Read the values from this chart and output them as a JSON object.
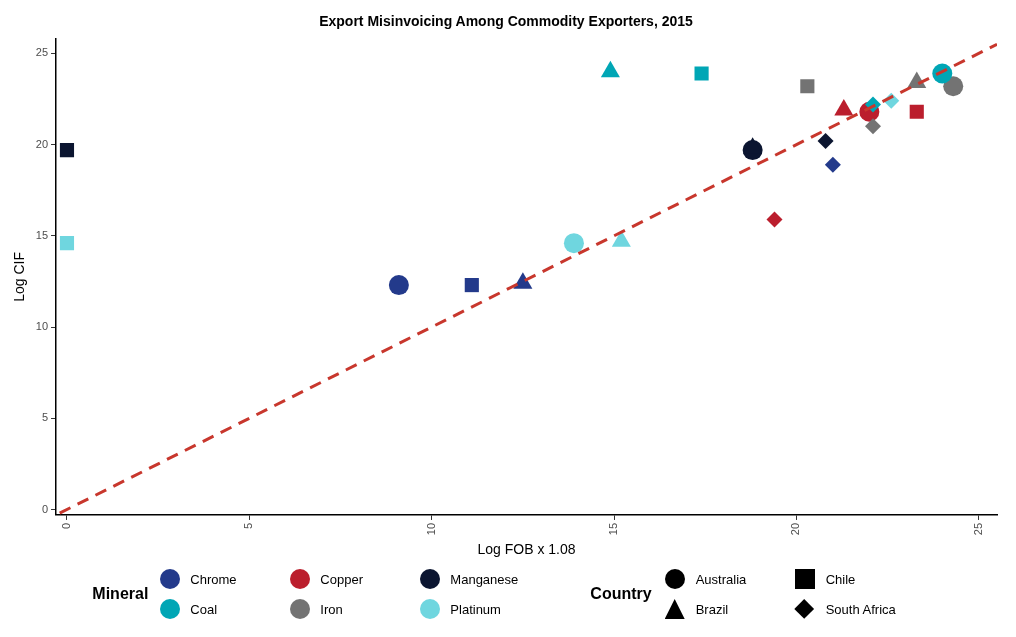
{
  "chart_data": {
    "type": "scatter",
    "title": "Export Misinvoicing Among Commodity Exporters, 2015",
    "xlabel": "Log FOB x 1.08",
    "ylabel": "Log CIF",
    "xlim": [
      -0.3,
      25.5
    ],
    "ylim": [
      -0.3,
      25.8
    ],
    "xticks": [
      0,
      5,
      10,
      15,
      20,
      25
    ],
    "yticks": [
      0,
      5,
      10,
      15,
      20,
      25
    ],
    "grid": false,
    "legend": "bottom",
    "legend_title": "Mineral",
    "annotations": [
      "Country",
      "Australia",
      "Chile",
      "Brazil",
      "South Africa"
    ],
    "series": [
      {
        "name": "Chrome",
        "color": "#233a8b",
        "marker": "circle",
        "x": [
          9.1
        ],
        "values": [
          12.3
        ]
      },
      {
        "color": "#233a8b",
        "marker": "square",
        "x": [
          11.1
        ],
        "values": [
          12.3
        ]
      },
      {
        "color": "#233a8b",
        "marker": "triangle",
        "x": [
          12.5
        ],
        "values": [
          12.4
        ]
      },
      {
        "color": "#233a8b",
        "marker": "diamond",
        "x": [
          21.0
        ],
        "values": [
          18.9
        ]
      },
      {
        "name": "Copper",
        "color": "#bb1e2d",
        "marker": "circle",
        "x": [
          22.0
        ],
        "values": [
          21.8
        ]
      },
      {
        "color": "#bb1e2d",
        "marker": "square",
        "x": [
          23.3
        ],
        "values": [
          21.8
        ]
      },
      {
        "color": "#bb1e2d",
        "marker": "triangle",
        "x": [
          21.3
        ],
        "values": [
          21.9
        ]
      },
      {
        "color": "#bb1e2d",
        "marker": "diamond",
        "x": [
          19.4
        ],
        "values": [
          15.9
        ]
      },
      {
        "name": "Manganese",
        "color": "#0b1530",
        "marker": "circle",
        "x": [
          18.8
        ],
        "values": [
          19.7
        ]
      },
      {
        "color": "#0b1530",
        "marker": "square",
        "x": [
          0
        ],
        "values": [
          19.7
        ]
      },
      {
        "color": "#0b1530",
        "marker": "triangle",
        "x": [
          18.8
        ],
        "values": [
          19.8
        ]
      },
      {
        "color": "#0b1530",
        "marker": "diamond",
        "x": [
          20.8
        ],
        "values": [
          20.2
        ]
      },
      {
        "name": "Coal",
        "color": "#00a6b5",
        "marker": "circle",
        "x": [
          24.0
        ],
        "values": [
          23.9
        ]
      },
      {
        "color": "#00a6b5",
        "marker": "square",
        "x": [
          17.4
        ],
        "values": [
          23.9
        ]
      },
      {
        "color": "#00a6b5",
        "marker": "triangle",
        "x": [
          14.9
        ],
        "values": [
          24.0
        ]
      },
      {
        "color": "#00a6b5",
        "marker": "diamond",
        "x": [
          22.1
        ],
        "values": [
          22.2
        ]
      },
      {
        "name": "Iron",
        "color": "#737373",
        "marker": "circle",
        "x": [
          24.3
        ],
        "values": [
          23.2
        ]
      },
      {
        "color": "#737373",
        "marker": "square",
        "x": [
          20.3
        ],
        "values": [
          23.2
        ]
      },
      {
        "color": "#737373",
        "marker": "triangle",
        "x": [
          23.3
        ],
        "values": [
          23.4
        ]
      },
      {
        "color": "#737373",
        "marker": "diamond",
        "x": [
          22.1
        ],
        "values": [
          21.0
        ]
      },
      {
        "name": "Platinum",
        "color": "#6fd6df",
        "marker": "circle",
        "x": [
          13.9
        ],
        "values": [
          14.6
        ]
      },
      {
        "color": "#6fd6df",
        "marker": "square",
        "x": [
          0
        ],
        "values": [
          14.6
        ]
      },
      {
        "color": "#6fd6df",
        "marker": "triangle",
        "x": [
          15.2
        ],
        "values": [
          14.7
        ]
      },
      {
        "color": "#6fd6df",
        "marker": "diamond",
        "x": [
          22.6
        ],
        "values": [
          22.4
        ]
      },
      {
        "type": "line",
        "color": "#c8372d",
        "line_style": "dashed",
        "x": [
          -0.2,
          25.5
        ],
        "values": [
          -0.2,
          25.5
        ]
      }
    ]
  }
}
